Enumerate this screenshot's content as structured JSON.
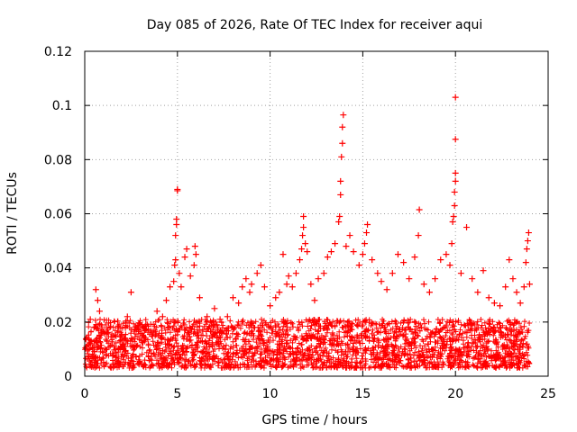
{
  "chart_data": {
    "type": "scatter",
    "title": "Day 085 of 2026, Rate Of TEC Index for receiver aqui",
    "xlabel": "GPS time / hours",
    "ylabel": "ROTI / TECUs",
    "xlim": [
      0,
      25
    ],
    "ylim": [
      0,
      0.12
    ],
    "x_ticks": [
      "0",
      "5",
      "10",
      "15",
      "20",
      "25"
    ],
    "y_ticks": [
      "0",
      "0.02",
      "0.04",
      "0.06",
      "0.08",
      "0.1",
      "0.12"
    ],
    "grid": true,
    "marker": "plus",
    "color": "#ff0000",
    "background_band": {
      "x_range": [
        0,
        24
      ],
      "y_range": [
        0.003,
        0.021
      ],
      "note": "dense cloud of points covering the whole day"
    },
    "series": [
      {
        "name": "ROTI",
        "points": [
          [
            0.3,
            0.021
          ],
          [
            0.5,
            0.018
          ],
          [
            0.6,
            0.032
          ],
          [
            0.7,
            0.028
          ],
          [
            0.8,
            0.024
          ],
          [
            1.2,
            0.013
          ],
          [
            1.6,
            0.011
          ],
          [
            2.0,
            0.015
          ],
          [
            2.3,
            0.022
          ],
          [
            2.5,
            0.031
          ],
          [
            2.9,
            0.017
          ],
          [
            3.3,
            0.019
          ],
          [
            3.7,
            0.016
          ],
          [
            3.9,
            0.024
          ],
          [
            4.2,
            0.022
          ],
          [
            4.4,
            0.028
          ],
          [
            4.6,
            0.033
          ],
          [
            4.8,
            0.035
          ],
          [
            4.85,
            0.041
          ],
          [
            4.9,
            0.043
          ],
          [
            4.9,
            0.052
          ],
          [
            4.95,
            0.056
          ],
          [
            4.95,
            0.058
          ],
          [
            5.0,
            0.0685
          ],
          [
            5.0,
            0.069
          ],
          [
            5.1,
            0.038
          ],
          [
            5.2,
            0.033
          ],
          [
            5.4,
            0.044
          ],
          [
            5.5,
            0.047
          ],
          [
            5.7,
            0.037
          ],
          [
            5.9,
            0.041
          ],
          [
            5.95,
            0.048
          ],
          [
            6.0,
            0.045
          ],
          [
            6.2,
            0.029
          ],
          [
            6.6,
            0.022
          ],
          [
            7.0,
            0.025
          ],
          [
            7.3,
            0.021
          ],
          [
            7.7,
            0.022
          ],
          [
            8.0,
            0.029
          ],
          [
            8.3,
            0.027
          ],
          [
            8.5,
            0.033
          ],
          [
            8.7,
            0.036
          ],
          [
            8.9,
            0.031
          ],
          [
            9.0,
            0.034
          ],
          [
            9.3,
            0.038
          ],
          [
            9.5,
            0.041
          ],
          [
            9.7,
            0.033
          ],
          [
            10.0,
            0.026
          ],
          [
            10.3,
            0.029
          ],
          [
            10.5,
            0.031
          ],
          [
            10.7,
            0.045
          ],
          [
            10.9,
            0.034
          ],
          [
            11.0,
            0.037
          ],
          [
            11.2,
            0.033
          ],
          [
            11.4,
            0.038
          ],
          [
            11.6,
            0.043
          ],
          [
            11.7,
            0.047
          ],
          [
            11.75,
            0.052
          ],
          [
            11.8,
            0.055
          ],
          [
            11.8,
            0.059
          ],
          [
            11.9,
            0.049
          ],
          [
            12.0,
            0.046
          ],
          [
            12.2,
            0.034
          ],
          [
            12.4,
            0.028
          ],
          [
            12.6,
            0.036
          ],
          [
            12.9,
            0.038
          ],
          [
            13.1,
            0.044
          ],
          [
            13.3,
            0.046
          ],
          [
            13.5,
            0.049
          ],
          [
            13.7,
            0.057
          ],
          [
            13.75,
            0.059
          ],
          [
            13.8,
            0.067
          ],
          [
            13.8,
            0.072
          ],
          [
            13.85,
            0.081
          ],
          [
            13.9,
            0.086
          ],
          [
            13.9,
            0.092
          ],
          [
            13.95,
            0.0965
          ],
          [
            14.1,
            0.048
          ],
          [
            14.3,
            0.052
          ],
          [
            14.5,
            0.046
          ],
          [
            14.8,
            0.041
          ],
          [
            15.0,
            0.045
          ],
          [
            15.1,
            0.049
          ],
          [
            15.2,
            0.053
          ],
          [
            15.25,
            0.056
          ],
          [
            15.5,
            0.043
          ],
          [
            15.8,
            0.038
          ],
          [
            16.0,
            0.035
          ],
          [
            16.3,
            0.032
          ],
          [
            16.6,
            0.038
          ],
          [
            16.9,
            0.045
          ],
          [
            17.2,
            0.042
          ],
          [
            17.5,
            0.036
          ],
          [
            17.8,
            0.044
          ],
          [
            18.0,
            0.052
          ],
          [
            18.05,
            0.0615
          ],
          [
            18.3,
            0.034
          ],
          [
            18.6,
            0.031
          ],
          [
            18.9,
            0.036
          ],
          [
            19.2,
            0.043
          ],
          [
            19.5,
            0.045
          ],
          [
            19.7,
            0.041
          ],
          [
            19.8,
            0.049
          ],
          [
            19.85,
            0.057
          ],
          [
            19.9,
            0.059
          ],
          [
            19.95,
            0.063
          ],
          [
            19.95,
            0.068
          ],
          [
            20.0,
            0.072
          ],
          [
            20.0,
            0.075
          ],
          [
            20.0,
            0.0875
          ],
          [
            20.0,
            0.103
          ],
          [
            20.3,
            0.038
          ],
          [
            20.6,
            0.055
          ],
          [
            20.9,
            0.036
          ],
          [
            21.2,
            0.031
          ],
          [
            21.5,
            0.039
          ],
          [
            21.8,
            0.029
          ],
          [
            22.1,
            0.027
          ],
          [
            22.4,
            0.026
          ],
          [
            22.7,
            0.033
          ],
          [
            22.9,
            0.043
          ],
          [
            23.1,
            0.036
          ],
          [
            23.3,
            0.031
          ],
          [
            23.5,
            0.027
          ],
          [
            23.7,
            0.033
          ],
          [
            23.8,
            0.042
          ],
          [
            23.85,
            0.047
          ],
          [
            23.9,
            0.05
          ],
          [
            23.95,
            0.053
          ],
          [
            24.0,
            0.034
          ]
        ]
      }
    ]
  }
}
